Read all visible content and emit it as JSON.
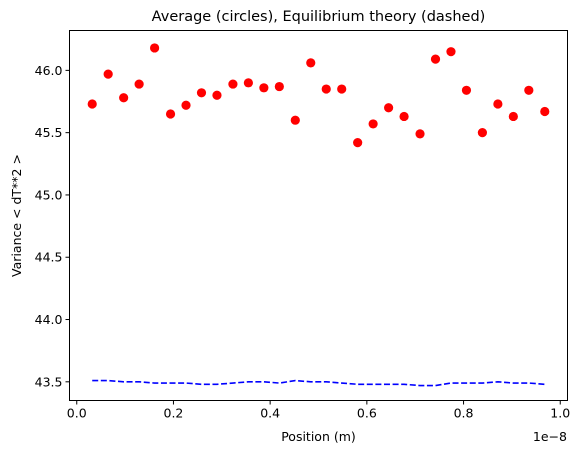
{
  "chart_data": {
    "type": "scatter",
    "title": "Average (circles), Equilibrium theory (dashed)",
    "xlabel": "Position (m)",
    "ylabel": "Variance < dT**2 >",
    "x_offset_label": "1e−8",
    "xlim": [
      -0.015,
      1.015
    ],
    "ylim": [
      43.35,
      46.32
    ],
    "x_ticks": [
      0.0,
      0.2,
      0.4,
      0.6,
      0.8,
      1.0
    ],
    "x_tick_labels": [
      "0.0",
      "0.2",
      "0.4",
      "0.6",
      "0.8",
      "1.0"
    ],
    "y_ticks": [
      43.5,
      44.0,
      44.5,
      45.0,
      45.5,
      46.0
    ],
    "y_tick_labels": [
      "43.5",
      "44.0",
      "44.5",
      "45.0",
      "45.5",
      "46.0"
    ],
    "grid": false,
    "series": [
      {
        "style": "circles",
        "color": "#ff0000",
        "x": [
          0.032,
          0.065,
          0.097,
          0.129,
          0.161,
          0.194,
          0.226,
          0.258,
          0.29,
          0.323,
          0.355,
          0.387,
          0.419,
          0.452,
          0.484,
          0.516,
          0.548,
          0.581,
          0.613,
          0.645,
          0.677,
          0.71,
          0.742,
          0.774,
          0.806,
          0.839,
          0.871,
          0.903,
          0.935,
          0.968
        ],
        "y": [
          45.73,
          45.97,
          45.78,
          45.89,
          46.18,
          45.65,
          45.72,
          45.82,
          45.8,
          45.89,
          45.9,
          45.86,
          45.87,
          45.6,
          46.06,
          45.85,
          45.85,
          45.42,
          45.57,
          45.7,
          45.63,
          45.49,
          46.09,
          46.15,
          45.84,
          45.5,
          45.73,
          45.63,
          45.84,
          45.67
        ]
      },
      {
        "style": "dashed",
        "color": "#0000ff",
        "x": [
          0.032,
          0.065,
          0.097,
          0.129,
          0.161,
          0.194,
          0.226,
          0.258,
          0.29,
          0.323,
          0.355,
          0.387,
          0.419,
          0.452,
          0.484,
          0.516,
          0.548,
          0.581,
          0.613,
          0.645,
          0.677,
          0.71,
          0.742,
          0.774,
          0.806,
          0.839,
          0.871,
          0.903,
          0.935,
          0.968
        ],
        "y": [
          43.51,
          43.51,
          43.5,
          43.5,
          43.49,
          43.49,
          43.49,
          43.48,
          43.48,
          43.49,
          43.5,
          43.5,
          43.49,
          43.51,
          43.5,
          43.5,
          43.49,
          43.48,
          43.48,
          43.48,
          43.48,
          43.47,
          43.47,
          43.49,
          43.49,
          43.49,
          43.5,
          43.49,
          43.49,
          43.48
        ]
      }
    ]
  }
}
